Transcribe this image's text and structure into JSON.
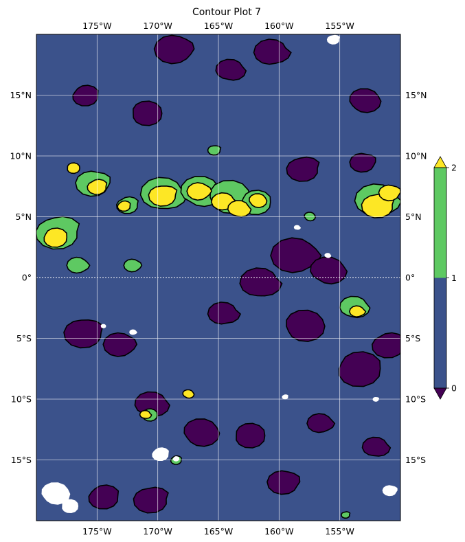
{
  "chart_data": {
    "type": "contour",
    "title": "Contour Plot 7",
    "projection": "PlateCarree map",
    "xlim": [
      -180,
      -150
    ],
    "ylim": [
      -20,
      20
    ],
    "lon_ticks": [
      {
        "value": -175,
        "label": "175°W"
      },
      {
        "value": -170,
        "label": "170°W"
      },
      {
        "value": -165,
        "label": "165°W"
      },
      {
        "value": -160,
        "label": "160°W"
      },
      {
        "value": -155,
        "label": "155°W"
      }
    ],
    "lat_ticks": [
      {
        "value": 15,
        "label": "15°N"
      },
      {
        "value": 10,
        "label": "10°N"
      },
      {
        "value": 5,
        "label": "5°N"
      },
      {
        "value": 0,
        "label": "0°"
      },
      {
        "value": -5,
        "label": "5°S"
      },
      {
        "value": -10,
        "label": "10°S"
      },
      {
        "value": -15,
        "label": "15°S"
      }
    ],
    "grid": true,
    "equator_line": "dotted",
    "colorbar": {
      "placement": "right",
      "ticks": [
        {
          "value": 0,
          "label": "0"
        },
        {
          "value": 1,
          "label": "1"
        },
        {
          "value": 2,
          "label": "2"
        }
      ],
      "bands": [
        {
          "from": 0,
          "to": 1,
          "color": "#3b528b"
        },
        {
          "from": 1,
          "to": 2,
          "color": "#5ec962"
        }
      ],
      "extend_min_color": "#440154",
      "extend_max_color": "#fde725"
    },
    "colors": {
      "below_0": "#440154",
      "level_0_1": "#3b528b",
      "level_1_2": "#5ec962",
      "above_2": "#fde725",
      "missing": "#ffffff"
    },
    "regions": {
      "high_above_2": [
        {
          "lon": -178.5,
          "lat": 3.3,
          "r": 1.1
        },
        {
          "lon": -175,
          "lat": 7.5,
          "r": 0.9
        },
        {
          "lon": -169.5,
          "lat": 6.8,
          "r": 1.3
        },
        {
          "lon": -166.5,
          "lat": 7.1,
          "r": 1.1
        },
        {
          "lon": -164.5,
          "lat": 6.2,
          "r": 1.1
        },
        {
          "lon": -163.3,
          "lat": 5.6,
          "r": 1.0
        },
        {
          "lon": -161.8,
          "lat": 6.3,
          "r": 0.8
        },
        {
          "lon": -177,
          "lat": 9.0,
          "r": 0.6
        },
        {
          "lon": -172.8,
          "lat": 5.9,
          "r": 0.6
        },
        {
          "lon": -151.8,
          "lat": 6.0,
          "r": 1.5
        },
        {
          "lon": -150.8,
          "lat": 7.0,
          "r": 1.0
        },
        {
          "lon": -153.5,
          "lat": -2.8,
          "r": 0.7
        },
        {
          "lon": -171.0,
          "lat": -11.3,
          "r": 0.5
        },
        {
          "lon": -167.5,
          "lat": -9.6,
          "r": 0.5
        }
      ],
      "mid_1_to_2": [
        {
          "lon": -178.2,
          "lat": 3.8,
          "r": 2.0
        },
        {
          "lon": -175.2,
          "lat": 7.8,
          "r": 1.6
        },
        {
          "lon": -176.5,
          "lat": 1.0,
          "r": 1.0
        },
        {
          "lon": -169.5,
          "lat": 6.8,
          "r": 2.0
        },
        {
          "lon": -166.5,
          "lat": 7.0,
          "r": 1.8
        },
        {
          "lon": -164.2,
          "lat": 6.6,
          "r": 1.9
        },
        {
          "lon": -162.0,
          "lat": 6.2,
          "r": 1.4
        },
        {
          "lon": -172.5,
          "lat": 6.0,
          "r": 1.0
        },
        {
          "lon": -165.3,
          "lat": 10.5,
          "r": 0.6
        },
        {
          "lon": -172.0,
          "lat": 1.0,
          "r": 0.8
        },
        {
          "lon": -151.8,
          "lat": 6.3,
          "r": 2.0
        },
        {
          "lon": -153.8,
          "lat": -2.5,
          "r": 1.3
        },
        {
          "lon": -157.5,
          "lat": 5.0,
          "r": 0.5
        },
        {
          "lon": -170.7,
          "lat": -11.3,
          "r": 0.7
        },
        {
          "lon": -168.5,
          "lat": -15.0,
          "r": 0.5
        },
        {
          "lon": -154.5,
          "lat": -19.5,
          "r": 0.4
        }
      ],
      "low_below_0": [
        {
          "lon": -168.5,
          "lat": 18.8,
          "r": 1.8
        },
        {
          "lon": -160.5,
          "lat": 18.5,
          "r": 1.6
        },
        {
          "lon": -164.0,
          "lat": 17.0,
          "r": 1.3
        },
        {
          "lon": -153.0,
          "lat": 14.5,
          "r": 1.4
        },
        {
          "lon": -171.0,
          "lat": 13.5,
          "r": 1.4
        },
        {
          "lon": -176.0,
          "lat": 15.0,
          "r": 1.2
        },
        {
          "lon": -158.0,
          "lat": 9.0,
          "r": 1.5
        },
        {
          "lon": -153.0,
          "lat": 9.5,
          "r": 1.2
        },
        {
          "lon": -158.5,
          "lat": 1.8,
          "r": 2.2
        },
        {
          "lon": -161.5,
          "lat": -0.5,
          "r": 1.8
        },
        {
          "lon": -156.0,
          "lat": 0.5,
          "r": 1.6
        },
        {
          "lon": -158.0,
          "lat": -4.0,
          "r": 1.8
        },
        {
          "lon": -153.5,
          "lat": -7.5,
          "r": 2.0
        },
        {
          "lon": -151.0,
          "lat": -5.5,
          "r": 1.5
        },
        {
          "lon": -176.0,
          "lat": -4.5,
          "r": 1.8
        },
        {
          "lon": -173.0,
          "lat": -5.5,
          "r": 1.5
        },
        {
          "lon": -164.5,
          "lat": -3.0,
          "r": 1.4
        },
        {
          "lon": -170.5,
          "lat": -10.5,
          "r": 1.5
        },
        {
          "lon": -166.5,
          "lat": -12.8,
          "r": 1.6
        },
        {
          "lon": -162.5,
          "lat": -13.0,
          "r": 1.4
        },
        {
          "lon": -174.5,
          "lat": -18.0,
          "r": 1.4
        },
        {
          "lon": -170.5,
          "lat": -18.2,
          "r": 1.6
        },
        {
          "lon": -159.5,
          "lat": -16.8,
          "r": 1.5
        },
        {
          "lon": -156.5,
          "lat": -12.0,
          "r": 1.2
        },
        {
          "lon": -152.0,
          "lat": -14.0,
          "r": 1.2
        }
      ],
      "missing_data": [
        {
          "lon": -178.5,
          "lat": -17.8,
          "r": 1.3
        },
        {
          "lon": -177.3,
          "lat": -18.8,
          "r": 0.8
        },
        {
          "lon": -169.8,
          "lat": -14.5,
          "r": 0.8
        },
        {
          "lon": -155.5,
          "lat": 19.6,
          "r": 0.6
        },
        {
          "lon": -150.8,
          "lat": -17.5,
          "r": 0.7
        },
        {
          "lon": -172.0,
          "lat": -4.5,
          "r": 0.35
        },
        {
          "lon": -158.5,
          "lat": 4.1,
          "r": 0.3
        },
        {
          "lon": -156.0,
          "lat": 1.8,
          "r": 0.3
        },
        {
          "lon": -174.5,
          "lat": -4.0,
          "r": 0.25
        },
        {
          "lon": -168.5,
          "lat": -14.9,
          "r": 0.3
        },
        {
          "lon": -159.5,
          "lat": -9.8,
          "r": 0.3
        },
        {
          "lon": -152.0,
          "lat": -10.0,
          "r": 0.3
        }
      ]
    }
  }
}
